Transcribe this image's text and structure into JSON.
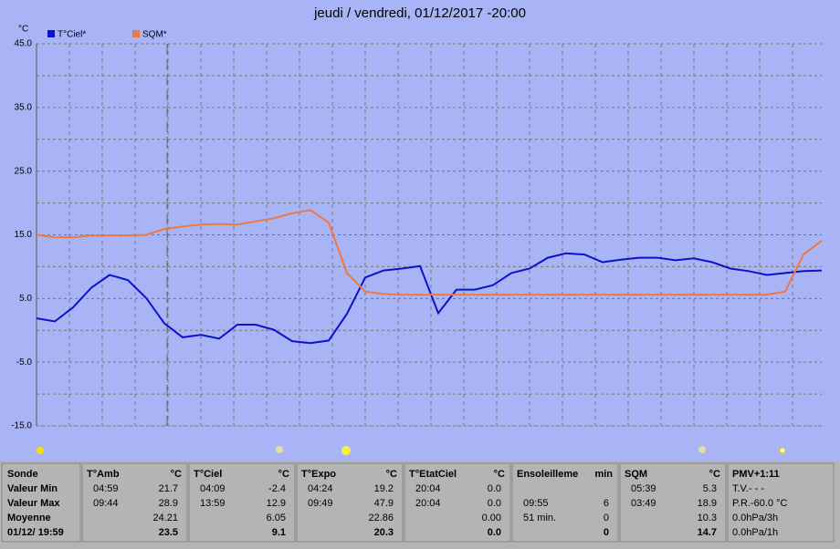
{
  "chart_data": {
    "type": "line",
    "title": "jeudi / vendredi, 01/12/2017  -20:00",
    "y_label": "°C",
    "categories": [
      null,
      null,
      null,
      null,
      null,
      null,
      null,
      null,
      null,
      null,
      null,
      null,
      null,
      null,
      null,
      null,
      null,
      null,
      null,
      null,
      null,
      null,
      null,
      null,
      null,
      null,
      null,
      null,
      null,
      null,
      null,
      null,
      null,
      null,
      null,
      null,
      null,
      null,
      null,
      null,
      null,
      null,
      null,
      null
    ],
    "series": [
      {
        "name": "T°Ciel*",
        "color": "#0a14c8",
        "values": [
          1.9,
          1.4,
          3.6,
          6.7,
          8.7,
          7.9,
          5.1,
          1.1,
          -1.1,
          -0.7,
          -1.3,
          0.9,
          0.9,
          0.1,
          -1.7,
          -2.0,
          -1.6,
          2.6,
          8.3,
          9.4,
          9.7,
          10.1,
          2.7,
          6.4,
          6.4,
          7.1,
          9.0,
          9.7,
          11.4,
          12.1,
          11.9,
          10.7,
          11.1,
          11.4,
          11.4,
          11.0,
          11.3,
          10.7,
          9.7,
          9.3,
          8.7,
          9.0,
          9.3,
          9.4
        ]
      },
      {
        "name": "SQM*",
        "color": "#f07840",
        "values": [
          15.0,
          14.6,
          14.6,
          14.9,
          14.9,
          14.9,
          15.0,
          15.9,
          16.3,
          16.6,
          16.7,
          16.6,
          17.1,
          17.6,
          18.4,
          18.9,
          16.9,
          9.0,
          6.1,
          5.7,
          5.6,
          5.6,
          5.6,
          5.6,
          5.6,
          5.6,
          5.6,
          5.6,
          5.6,
          5.6,
          5.6,
          5.6,
          5.6,
          5.6,
          5.6,
          5.6,
          5.6,
          5.6,
          5.6,
          5.6,
          5.6,
          6.1,
          11.9,
          14.1
        ]
      }
    ],
    "ylim": [
      -15,
      45
    ],
    "yticks": [
      {
        "value": -15,
        "label": "-15.0"
      },
      {
        "value": -5,
        "label": "-5.0"
      },
      {
        "value": 5,
        "label": "5.0"
      },
      {
        "value": 15,
        "label": "15.0"
      },
      {
        "value": 25,
        "label": "25.0"
      },
      {
        "value": 35,
        "label": "35.0"
      },
      {
        "value": 45,
        "label": "45.0"
      }
    ],
    "grid": true
  },
  "table": {
    "row_labels": [
      "Sonde",
      "Valeur Min",
      "Valeur Max",
      "Moyenne",
      "01/12/ 19:59"
    ],
    "columns": [
      {
        "header": "T°Amb",
        "unit": "°C",
        "rows": [
          [
            "04:59",
            "21.7"
          ],
          [
            "09:44",
            "28.9"
          ],
          [
            null,
            "24.21"
          ],
          [
            null,
            "23.5"
          ]
        ]
      },
      {
        "header": "T°Ciel",
        "unit": "°C",
        "rows": [
          [
            "04:09",
            "-2.4"
          ],
          [
            "13:59",
            "12.9"
          ],
          [
            null,
            "6.05"
          ],
          [
            null,
            "9.1"
          ]
        ]
      },
      {
        "header": "T°Expo",
        "unit": "°C",
        "rows": [
          [
            "04:24",
            "19.2"
          ],
          [
            "09:49",
            "47.9"
          ],
          [
            null,
            "22.86"
          ],
          [
            null,
            "20.3"
          ]
        ]
      },
      {
        "header": "T°EtatCiel",
        "unit": "°C",
        "rows": [
          [
            "20:04",
            "0.0"
          ],
          [
            "20:04",
            "0.0"
          ],
          [
            null,
            "0.00"
          ],
          [
            null,
            "0.0"
          ]
        ]
      },
      {
        "header": "Ensoleilleme",
        "unit": "min",
        "rows": [
          [
            null,
            null
          ],
          [
            "09:55",
            "6"
          ],
          [
            "51 min.",
            "0"
          ],
          [
            null,
            "0"
          ]
        ]
      },
      {
        "header": "SQM",
        "unit": "°C",
        "rows": [
          [
            "05:39",
            "5.3"
          ],
          [
            "03:49",
            "18.9"
          ],
          [
            null,
            "10.3"
          ],
          [
            null,
            "14.7"
          ]
        ]
      },
      {
        "header": "PMV+1:11",
        "unit": null,
        "rows": [
          [
            "T.V.- - -",
            null
          ],
          [
            "P.R.-60.0 °C",
            null
          ],
          [
            "0.0hPa/3h",
            null
          ],
          [
            "0.0hPa/1h",
            null
          ]
        ]
      }
    ]
  }
}
